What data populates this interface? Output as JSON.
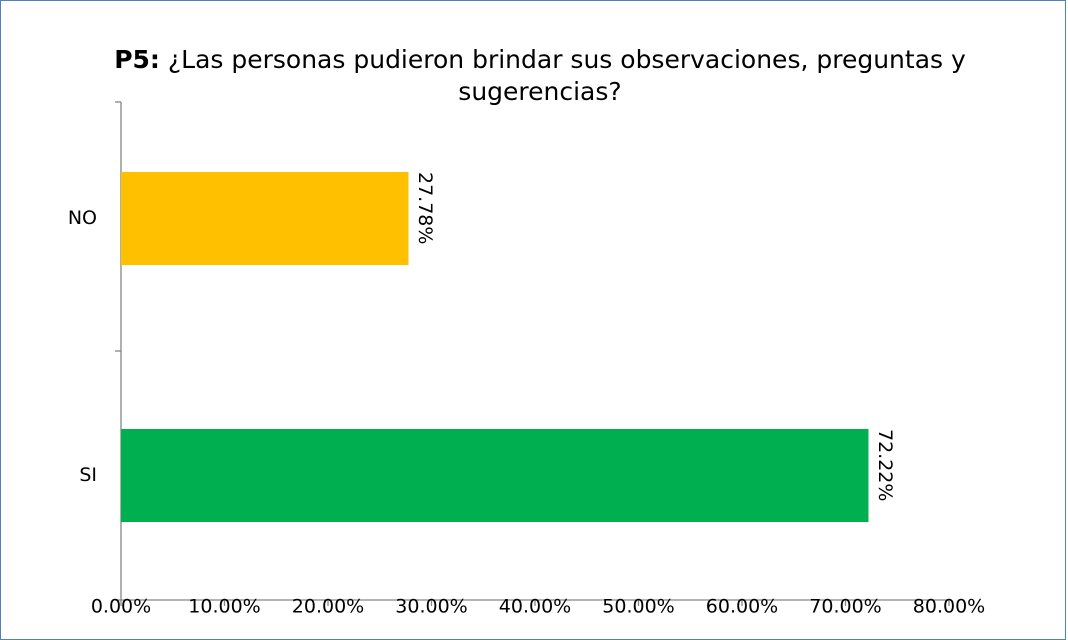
{
  "chart_data": {
    "type": "bar",
    "orientation": "horizontal",
    "title_label": "P5:",
    "title": "¿Las personas pudieron brindar sus observaciones, preguntas y sugerencias?",
    "categories": [
      "SI",
      "NO"
    ],
    "values": [
      72.22,
      27.78
    ],
    "value_labels": [
      "72.22%",
      "27.78%"
    ],
    "colors": [
      "#00b050",
      "#ffc000"
    ],
    "xlim": [
      0,
      80
    ],
    "xticks": [
      {
        "value": 0,
        "label": "0.00%"
      },
      {
        "value": 10,
        "label": "10.00%"
      },
      {
        "value": 20,
        "label": "20.00%"
      },
      {
        "value": 30,
        "label": "30.00%"
      },
      {
        "value": 40,
        "label": "40.00%"
      },
      {
        "value": 50,
        "label": "50.00%"
      },
      {
        "value": 60,
        "label": "60.00%"
      },
      {
        "value": 70,
        "label": "70.00%"
      },
      {
        "value": 80,
        "label": "80.00%"
      }
    ],
    "grid": false
  }
}
